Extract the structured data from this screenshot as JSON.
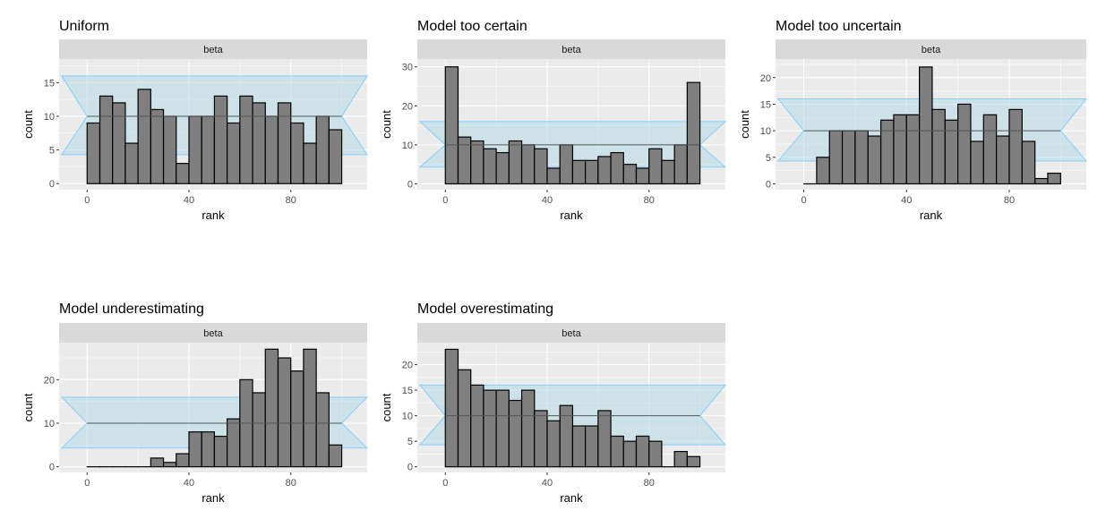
{
  "page": {
    "corner_text": ""
  },
  "chart_data": [
    {
      "type": "bar",
      "title": "Uniform",
      "strip": "beta",
      "xlabel": "rank",
      "ylabel": "count",
      "xlim": [
        -11,
        110
      ],
      "ylim": [
        -0.9,
        18.5
      ],
      "x_ticks": [
        0,
        40,
        80
      ],
      "y_ticks": [
        0,
        5,
        10,
        15
      ],
      "bin_width": 5,
      "bin_starts": [
        0,
        5,
        10,
        15,
        20,
        25,
        30,
        35,
        40,
        45,
        50,
        55,
        60,
        65,
        70,
        75,
        80,
        85,
        90,
        95
      ],
      "values": [
        9,
        13,
        12,
        6,
        14,
        11,
        10,
        3,
        10,
        10,
        13,
        9,
        13,
        12,
        10,
        12,
        9,
        6,
        10,
        8
      ],
      "band": {
        "mid": 10,
        "lower": 4.3,
        "upper": 16,
        "x_start": -10,
        "x_end": 110,
        "inner_start": 0,
        "inner_end": 100
      }
    },
    {
      "type": "bar",
      "title": "Model too certain",
      "strip": "beta",
      "xlabel": "rank",
      "ylabel": "count",
      "xlim": [
        -11,
        110
      ],
      "ylim": [
        -1.5,
        32
      ],
      "x_ticks": [
        0,
        40,
        80
      ],
      "y_ticks": [
        0,
        10,
        20,
        30
      ],
      "bin_width": 5,
      "bin_starts": [
        0,
        5,
        10,
        15,
        20,
        25,
        30,
        35,
        40,
        45,
        50,
        55,
        60,
        65,
        70,
        75,
        80,
        85,
        90,
        95
      ],
      "values": [
        30,
        12,
        11,
        9,
        8,
        11,
        10,
        9,
        4,
        10,
        6,
        6,
        7,
        8,
        5,
        4,
        9,
        6,
        10,
        26
      ],
      "band": {
        "mid": 10,
        "lower": 4.3,
        "upper": 16,
        "x_start": -10,
        "x_end": 110,
        "inner_start": 0,
        "inner_end": 100
      }
    },
    {
      "type": "bar",
      "title": "Model too uncertain",
      "strip": "beta",
      "xlabel": "rank",
      "ylabel": "count",
      "xlim": [
        -11,
        110
      ],
      "ylim": [
        -1.1,
        23.5
      ],
      "x_ticks": [
        0,
        40,
        80
      ],
      "y_ticks": [
        0,
        5,
        10,
        15,
        20
      ],
      "bin_width": 5,
      "bin_starts": [
        0,
        5,
        10,
        15,
        20,
        25,
        30,
        35,
        40,
        45,
        50,
        55,
        60,
        65,
        70,
        75,
        80,
        85,
        90,
        95
      ],
      "values": [
        0,
        5,
        10,
        10,
        10,
        9,
        12,
        13,
        13,
        22,
        14,
        12,
        15,
        8,
        13,
        9,
        14,
        8,
        1,
        2
      ],
      "band": {
        "mid": 10,
        "lower": 4.3,
        "upper": 16,
        "x_start": -10,
        "x_end": 110,
        "inner_start": 0,
        "inner_end": 100
      }
    },
    {
      "type": "bar",
      "title": "Model underestimating",
      "strip": "beta",
      "xlabel": "rank",
      "ylabel": "count",
      "xlim": [
        -11,
        110
      ],
      "ylim": [
        -1.3,
        28.5
      ],
      "x_ticks": [
        0,
        40,
        80
      ],
      "y_ticks": [
        0,
        10,
        20
      ],
      "bin_width": 5,
      "bin_starts": [
        0,
        5,
        10,
        15,
        20,
        25,
        30,
        35,
        40,
        45,
        50,
        55,
        60,
        65,
        70,
        75,
        80,
        85,
        90,
        95
      ],
      "values": [
        0,
        0,
        0,
        0,
        0,
        2,
        1,
        3,
        8,
        8,
        7,
        11,
        20,
        17,
        27,
        25,
        22,
        27,
        17,
        5
      ],
      "band": {
        "mid": 10,
        "lower": 4.3,
        "upper": 16,
        "x_start": -10,
        "x_end": 110,
        "inner_start": 0,
        "inner_end": 100
      }
    },
    {
      "type": "bar",
      "title": "Model overestimating",
      "strip": "beta",
      "xlabel": "rank",
      "ylabel": "count",
      "xlim": [
        -11,
        110
      ],
      "ylim": [
        -1.1,
        24.3
      ],
      "x_ticks": [
        0,
        40,
        80
      ],
      "y_ticks": [
        0,
        5,
        10,
        15,
        20
      ],
      "bin_width": 5,
      "bin_starts": [
        0,
        5,
        10,
        15,
        20,
        25,
        30,
        35,
        40,
        45,
        50,
        55,
        60,
        65,
        70,
        75,
        80,
        85,
        90,
        95
      ],
      "values": [
        23,
        19,
        16,
        15,
        15,
        13,
        15,
        11,
        9,
        12,
        8,
        8,
        11,
        6,
        5,
        6,
        5,
        0,
        3,
        2
      ],
      "band": {
        "mid": 10,
        "lower": 4.3,
        "upper": 16,
        "x_start": -10,
        "x_end": 110,
        "inner_start": 0,
        "inner_end": 100
      }
    }
  ],
  "colors": {
    "panel_bg": "#ebebeb",
    "grid_major": "#ffffff",
    "strip_bg": "#d9d9d9",
    "bar_fill": "#7f7f7f",
    "bar_stroke": "#000000",
    "band_fill": "#add8e6",
    "band_stroke": "#87cefa",
    "mid_line": "#555555",
    "tick": "#333333"
  }
}
